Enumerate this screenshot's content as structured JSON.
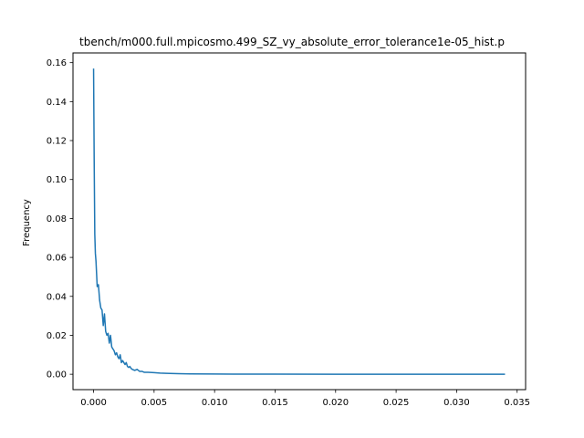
{
  "chart_data": {
    "type": "line",
    "title": "tbench/m000.full.mpicosmo.499_SZ_vy_absolute_error_tolerance1e-05_hist.p",
    "xlabel": "",
    "ylabel": "Frequency",
    "xlim": [
      -0.0017,
      0.0357
    ],
    "ylim": [
      -0.0079,
      0.165
    ],
    "xticks": [
      0.0,
      0.005,
      0.01,
      0.015,
      0.02,
      0.025,
      0.03,
      0.035
    ],
    "xtick_labels": [
      "0.000",
      "0.005",
      "0.010",
      "0.015",
      "0.020",
      "0.025",
      "0.030",
      "0.035"
    ],
    "yticks": [
      0.0,
      0.02,
      0.04,
      0.06,
      0.08,
      0.1,
      0.12,
      0.14,
      0.16
    ],
    "ytick_labels": [
      "0.00",
      "0.02",
      "0.04",
      "0.06",
      "0.08",
      "0.10",
      "0.12",
      "0.14",
      "0.16"
    ],
    "grid": false,
    "series": [
      {
        "color": "#1f77b4",
        "x": [
          0.0,
          5e-05,
          0.0001,
          0.00015,
          0.0002,
          0.0003,
          0.0004,
          0.0005,
          0.0006,
          0.0007,
          0.0008,
          0.0009,
          0.001,
          0.0011,
          0.0012,
          0.0013,
          0.0014,
          0.0015,
          0.0016,
          0.0017,
          0.0018,
          0.0019,
          0.002,
          0.0021,
          0.0022,
          0.0023,
          0.0024,
          0.0025,
          0.0026,
          0.0027,
          0.0028,
          0.0029,
          0.003,
          0.0031,
          0.0032,
          0.0034,
          0.0036,
          0.0038,
          0.004,
          0.0042,
          0.0045,
          0.005,
          0.0055,
          0.006,
          0.007,
          0.008,
          0.01,
          0.015,
          0.02,
          0.025,
          0.03,
          0.034
        ],
        "y": [
          0.157,
          0.11,
          0.072,
          0.062,
          0.058,
          0.045,
          0.046,
          0.038,
          0.034,
          0.033,
          0.025,
          0.031,
          0.022,
          0.02,
          0.021,
          0.016,
          0.02,
          0.014,
          0.013,
          0.012,
          0.01,
          0.011,
          0.009,
          0.008,
          0.01,
          0.006,
          0.007,
          0.006,
          0.005,
          0.006,
          0.004,
          0.0035,
          0.004,
          0.003,
          0.0025,
          0.002,
          0.0025,
          0.0015,
          0.0015,
          0.001,
          0.001,
          0.0008,
          0.0006,
          0.0005,
          0.0003,
          0.0002,
          0.0001,
          5e-05,
          2e-05,
          1e-05,
          0.0,
          0.0
        ]
      }
    ]
  }
}
